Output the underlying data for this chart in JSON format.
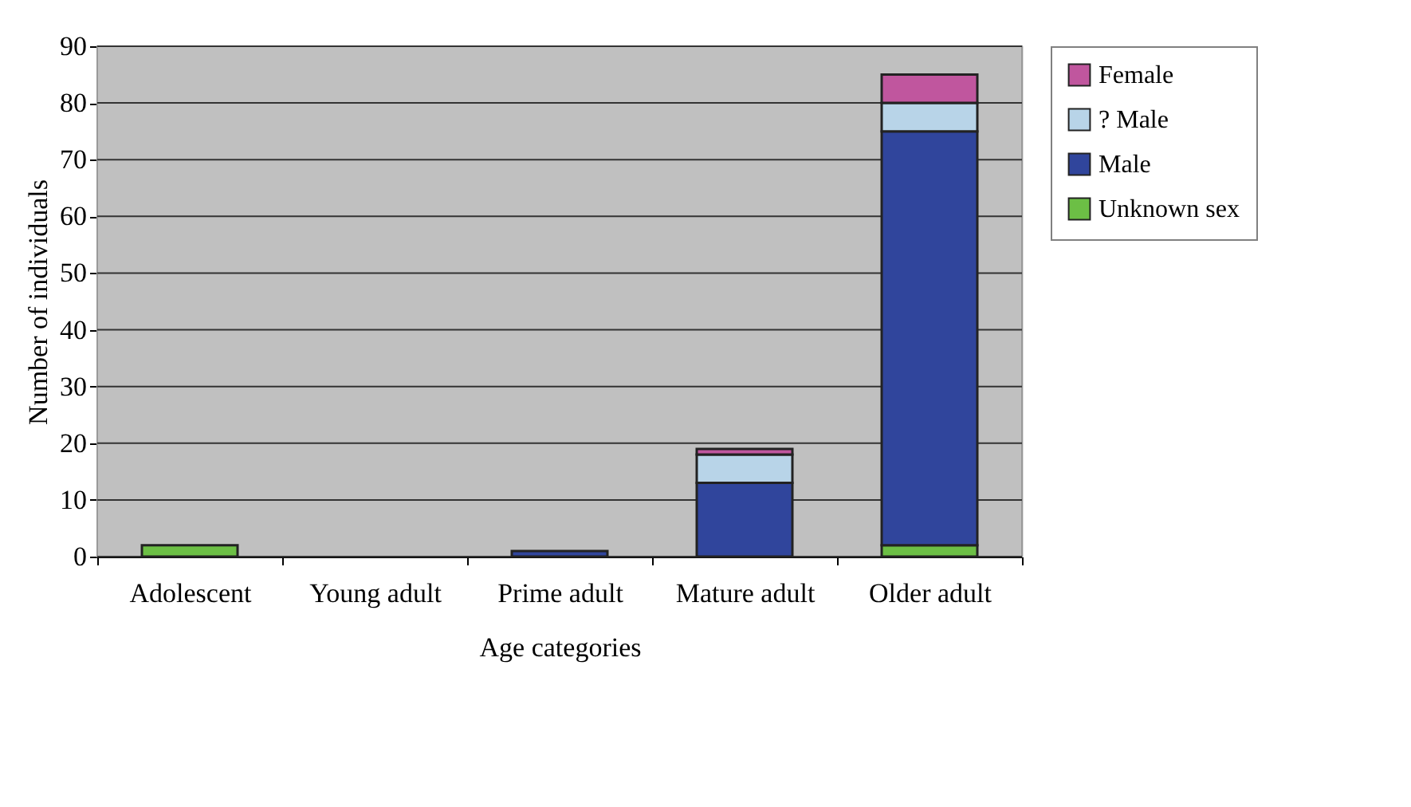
{
  "chart_data": {
    "type": "bar",
    "stacked": true,
    "xlabel": "Age categories",
    "ylabel": "Number of individuals",
    "categories": [
      "Adolescent",
      "Young adult",
      "Prime adult",
      "Mature adult",
      "Older adult"
    ],
    "series": [
      {
        "name": "Unknown sex",
        "color": "#6cbf45",
        "values": [
          2,
          0,
          0,
          0,
          2
        ]
      },
      {
        "name": "Male",
        "color": "#30459c",
        "values": [
          0,
          0,
          1,
          13,
          73
        ]
      },
      {
        "name": "? Male",
        "color": "#b8d4e8",
        "values": [
          0,
          0,
          0,
          5,
          5
        ]
      },
      {
        "name": "Female",
        "color": "#c0569e",
        "values": [
          0,
          0,
          0,
          1,
          5
        ]
      }
    ],
    "ylim": [
      0,
      90
    ],
    "yticks": [
      0,
      10,
      20,
      30,
      40,
      50,
      60,
      70,
      80,
      90
    ],
    "grid": "y",
    "legend": "right"
  }
}
